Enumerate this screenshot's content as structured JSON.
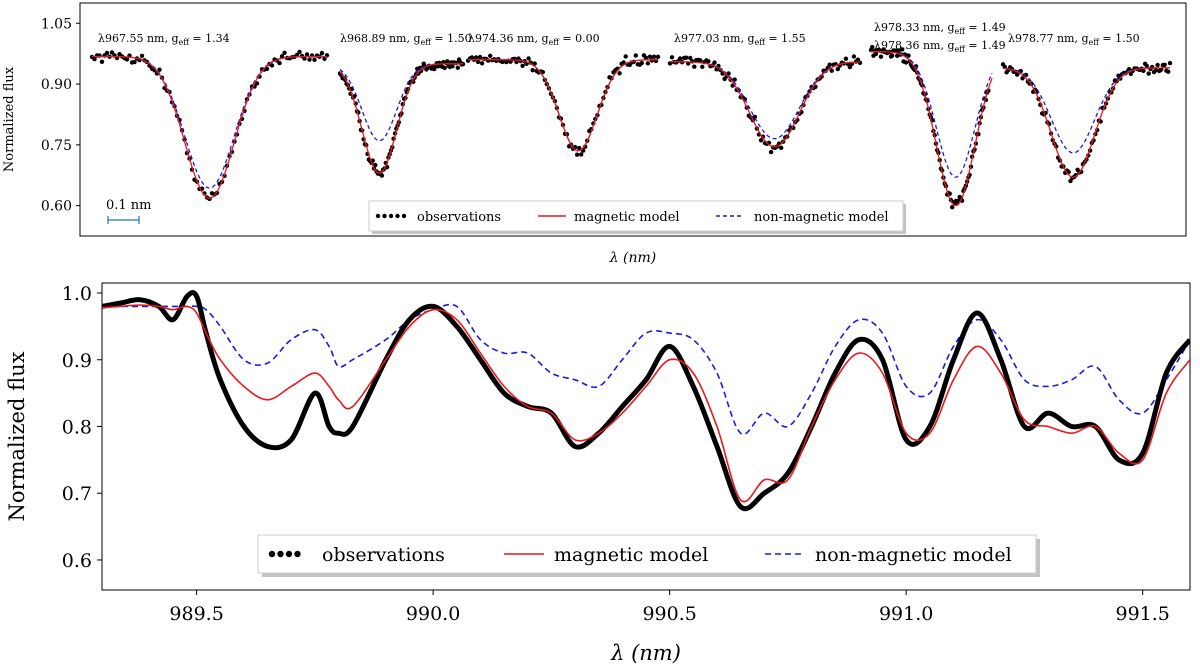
{
  "chart_data": [
    {
      "type": "line",
      "title": "",
      "xlabel": "λ (nm)",
      "ylabel": "Normalized flux",
      "ylim": [
        0.525,
        1.1
      ],
      "yticks": [
        "1.05",
        "0.90",
        "0.75",
        "0.60"
      ],
      "ytick_values": [
        1.05,
        0.9,
        0.75,
        0.6
      ],
      "scale_bar_label": "0.1 nm",
      "legend": {
        "placement": "bottom-center",
        "entries": [
          "observations",
          "magnetic model",
          "non-magnetic model"
        ]
      },
      "colors": {
        "observations": "#000000",
        "magnetic": "#e8191b",
        "nonmagnetic": "#1a1ae0"
      },
      "segments": [
        {
          "label": "λ967.55 nm, g_eff = 1.34",
          "label_lines": [
            {
              "pre": "λ967.55 nm, g",
              "sub": "eff",
              "post": " = 1.34"
            }
          ],
          "continuum": 0.968,
          "depth_magnetic": 0.35,
          "depth_nonmagnetic": 0.325,
          "center": 0.5,
          "width": 0.105,
          "obs_start": 0.0,
          "obs_end": 1.0
        },
        {
          "label": "λ968.89 nm, g_eff = 1.50",
          "label_lines": [
            {
              "pre": "λ968.89 nm, g",
              "sub": "eff",
              "post": " = 1.50"
            }
          ],
          "continuum": 0.95,
          "depth_magnetic": 0.27,
          "depth_nonmagnetic": 0.19,
          "center": 0.32,
          "width": 0.14,
          "obs_start": 0.0,
          "obs_end": 1.0
        },
        {
          "label": "λ974.36 nm, g_eff = 0.00",
          "label_lines": [
            {
              "pre": "λ974.36 nm, g",
              "sub": "eff",
              "post": " = 0.00"
            }
          ],
          "continuum": 0.96,
          "depth_magnetic": 0.225,
          "depth_nonmagnetic": 0.225,
          "center": 0.58,
          "width": 0.1,
          "obs_start": 0.0,
          "obs_end": 1.0
        },
        {
          "label": "λ977.03 nm, g_eff = 1.55",
          "label_lines": [
            {
              "pre": "λ977.03 nm, g",
              "sub": "eff",
              "post": " = 1.55"
            }
          ],
          "continuum": 0.955,
          "depth_magnetic": 0.21,
          "depth_nonmagnetic": 0.19,
          "center": 0.55,
          "width": 0.13,
          "obs_start": 0.0,
          "obs_end": 1.0
        },
        {
          "label": "λ978.33 nm, g_eff = 1.49 / λ978.36 nm, g_eff = 1.49",
          "label_lines": [
            {
              "pre": "λ978.33 nm, g",
              "sub": "eff",
              "post": " = 1.49"
            },
            {
              "pre": "λ978.36 nm, g",
              "sub": "eff",
              "post": " = 1.49"
            }
          ],
          "continuum": 0.98,
          "depth_magnetic": 0.38,
          "depth_nonmagnetic": 0.31,
          "center": 0.7,
          "width": 0.16,
          "obs_start": 0.0,
          "obs_end": 0.97
        },
        {
          "label": "λ978.77 nm, g_eff = 1.50",
          "label_lines": [
            {
              "pre": "λ978.77 nm, g",
              "sub": "eff",
              "post": " = 1.50"
            }
          ],
          "continuum": 0.94,
          "depth_magnetic": 0.27,
          "depth_nonmagnetic": 0.21,
          "center": 0.42,
          "width": 0.13,
          "obs_start": 0.0,
          "obs_end": 1.0
        }
      ]
    },
    {
      "type": "line",
      "title": "",
      "xlabel": "λ (nm)",
      "ylabel": "Normalized flux",
      "xlim": [
        989.3,
        991.6
      ],
      "ylim": [
        0.555,
        1.015
      ],
      "xticks": [
        989.5,
        990.0,
        990.5,
        991.0,
        991.5
      ],
      "xtick_labels": [
        "989.5",
        "990.0",
        "990.5",
        "991.0",
        "991.5"
      ],
      "yticks": [
        0.6,
        0.7,
        0.8,
        0.9,
        1.0
      ],
      "ytick_labels": [
        "0.6",
        "0.7",
        "0.8",
        "0.9",
        "1.0"
      ],
      "legend": {
        "placement": "bottom-center",
        "entries": [
          "observations",
          "magnetic model",
          "non-magnetic model"
        ]
      },
      "series": [
        {
          "name": "observations",
          "color": "#000000",
          "x": [
            989.3,
            989.34,
            989.38,
            989.42,
            989.45,
            989.48,
            989.5,
            989.52,
            989.55,
            989.6,
            989.65,
            989.7,
            989.75,
            989.78,
            989.8,
            989.83,
            989.9,
            989.95,
            990.0,
            990.05,
            990.1,
            990.15,
            990.2,
            990.25,
            990.3,
            990.35,
            990.4,
            990.45,
            990.5,
            990.55,
            990.6,
            990.65,
            990.7,
            990.75,
            990.8,
            990.85,
            990.9,
            990.95,
            991.0,
            991.05,
            991.1,
            991.15,
            991.2,
            991.25,
            991.3,
            991.35,
            991.4,
            991.45,
            991.5,
            991.55,
            991.6
          ],
          "values": [
            0.98,
            0.985,
            0.99,
            0.98,
            0.96,
            0.995,
            0.995,
            0.94,
            0.87,
            0.8,
            0.77,
            0.78,
            0.85,
            0.8,
            0.79,
            0.8,
            0.9,
            0.96,
            0.98,
            0.95,
            0.9,
            0.85,
            0.83,
            0.82,
            0.77,
            0.79,
            0.83,
            0.87,
            0.92,
            0.86,
            0.77,
            0.68,
            0.7,
            0.73,
            0.8,
            0.88,
            0.93,
            0.9,
            0.78,
            0.8,
            0.9,
            0.97,
            0.9,
            0.8,
            0.82,
            0.8,
            0.8,
            0.75,
            0.76,
            0.88,
            0.93
          ]
        },
        {
          "name": "magnetic model",
          "color": "#e8191b",
          "x": [
            989.3,
            989.34,
            989.38,
            989.42,
            989.45,
            989.48,
            989.5,
            989.52,
            989.55,
            989.6,
            989.65,
            989.7,
            989.75,
            989.78,
            989.8,
            989.83,
            989.9,
            989.95,
            990.0,
            990.05,
            990.1,
            990.15,
            990.2,
            990.25,
            990.3,
            990.35,
            990.4,
            990.45,
            990.5,
            990.55,
            990.6,
            990.65,
            990.7,
            990.75,
            990.8,
            990.85,
            990.9,
            990.95,
            991.0,
            991.05,
            991.1,
            991.15,
            991.2,
            991.25,
            991.3,
            991.35,
            991.4,
            991.45,
            991.5,
            991.55,
            991.6
          ],
          "values": [
            0.978,
            0.98,
            0.982,
            0.98,
            0.975,
            0.98,
            0.97,
            0.94,
            0.9,
            0.86,
            0.84,
            0.86,
            0.88,
            0.86,
            0.84,
            0.83,
            0.9,
            0.95,
            0.975,
            0.96,
            0.91,
            0.86,
            0.83,
            0.82,
            0.78,
            0.79,
            0.82,
            0.86,
            0.9,
            0.88,
            0.8,
            0.69,
            0.72,
            0.72,
            0.8,
            0.87,
            0.91,
            0.88,
            0.79,
            0.79,
            0.87,
            0.92,
            0.88,
            0.81,
            0.8,
            0.79,
            0.8,
            0.76,
            0.75,
            0.85,
            0.9
          ]
        },
        {
          "name": "non-magnetic model",
          "color": "#1a1ae0",
          "x": [
            989.3,
            989.34,
            989.38,
            989.42,
            989.45,
            989.48,
            989.5,
            989.52,
            989.55,
            989.6,
            989.65,
            989.7,
            989.75,
            989.78,
            989.8,
            989.83,
            989.9,
            989.95,
            990.0,
            990.05,
            990.1,
            990.15,
            990.2,
            990.25,
            990.3,
            990.35,
            990.4,
            990.45,
            990.5,
            990.55,
            990.6,
            990.65,
            990.7,
            990.75,
            990.8,
            990.85,
            990.9,
            990.95,
            991.0,
            991.05,
            991.1,
            991.15,
            991.2,
            991.25,
            991.3,
            991.35,
            991.4,
            991.45,
            991.5,
            991.55,
            991.6
          ],
          "values": [
            0.98,
            0.98,
            0.98,
            0.98,
            0.98,
            0.98,
            0.98,
            0.975,
            0.95,
            0.9,
            0.895,
            0.93,
            0.945,
            0.92,
            0.89,
            0.9,
            0.93,
            0.96,
            0.975,
            0.98,
            0.93,
            0.91,
            0.91,
            0.88,
            0.87,
            0.86,
            0.9,
            0.94,
            0.94,
            0.93,
            0.88,
            0.79,
            0.82,
            0.8,
            0.85,
            0.92,
            0.96,
            0.94,
            0.86,
            0.85,
            0.92,
            0.96,
            0.93,
            0.87,
            0.86,
            0.87,
            0.89,
            0.84,
            0.82,
            0.87,
            0.93
          ]
        }
      ]
    }
  ]
}
